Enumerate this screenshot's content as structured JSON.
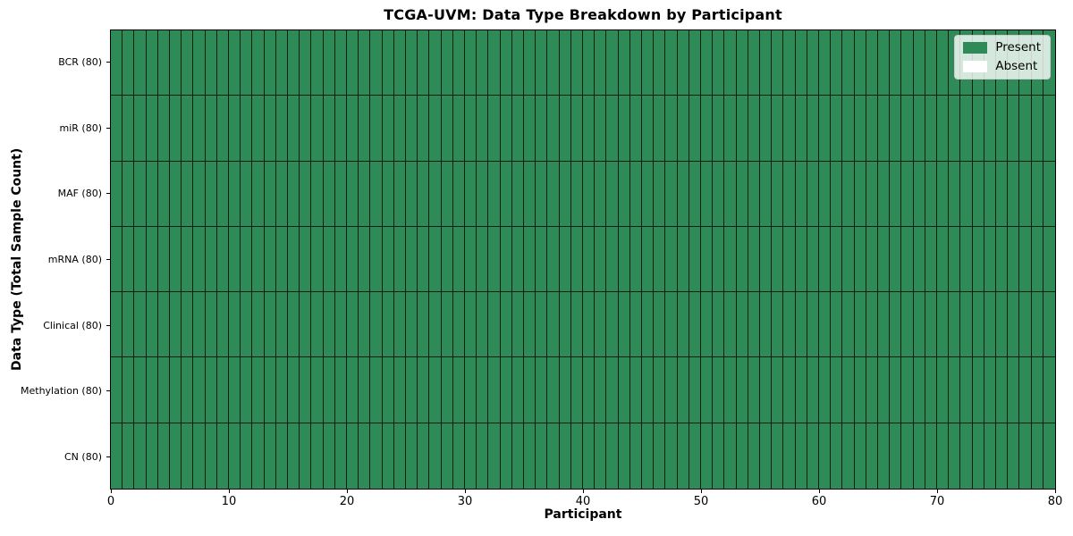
{
  "figure": {
    "title": "TCGA-UVM: Data Type Breakdown by Participant",
    "x_axis_label": "Participant",
    "y_axis_label": "Data Type (Total Sample Count)"
  },
  "legend": {
    "items": [
      {
        "label": "Present",
        "color": "#2e8b57"
      },
      {
        "label": "Absent",
        "color": "#ffffff"
      }
    ]
  },
  "chart_data": {
    "type": "heatmap",
    "title": "TCGA-UVM: Data Type Breakdown by Participant",
    "xlabel": "Participant",
    "ylabel": "Data Type (Total Sample Count)",
    "x_range": [
      0,
      80
    ],
    "x_ticks": [
      0,
      10,
      20,
      30,
      40,
      50,
      60,
      70,
      80
    ],
    "n_participants": 80,
    "categories": [
      "BCR (80)",
      "miR (80)",
      "MAF (80)",
      "mRNA (80)",
      "Clinical (80)",
      "Methylation (80)",
      "CN (80)"
    ],
    "series": [
      {
        "name": "BCR (80)",
        "present_count": 80,
        "absent_count": 0
      },
      {
        "name": "miR (80)",
        "present_count": 80,
        "absent_count": 0
      },
      {
        "name": "MAF (80)",
        "present_count": 80,
        "absent_count": 0
      },
      {
        "name": "mRNA (80)",
        "present_count": 80,
        "absent_count": 0
      },
      {
        "name": "Clinical (80)",
        "present_count": 80,
        "absent_count": 0
      },
      {
        "name": "Methylation (80)",
        "present_count": 80,
        "absent_count": 0
      },
      {
        "name": "CN (80)",
        "present_count": 80,
        "absent_count": 0
      }
    ],
    "colors": {
      "present": "#2e8b57",
      "absent": "#ffffff",
      "cell_edge": "#000000"
    },
    "legend_position": "upper right",
    "grid": "per-cell black edges"
  }
}
